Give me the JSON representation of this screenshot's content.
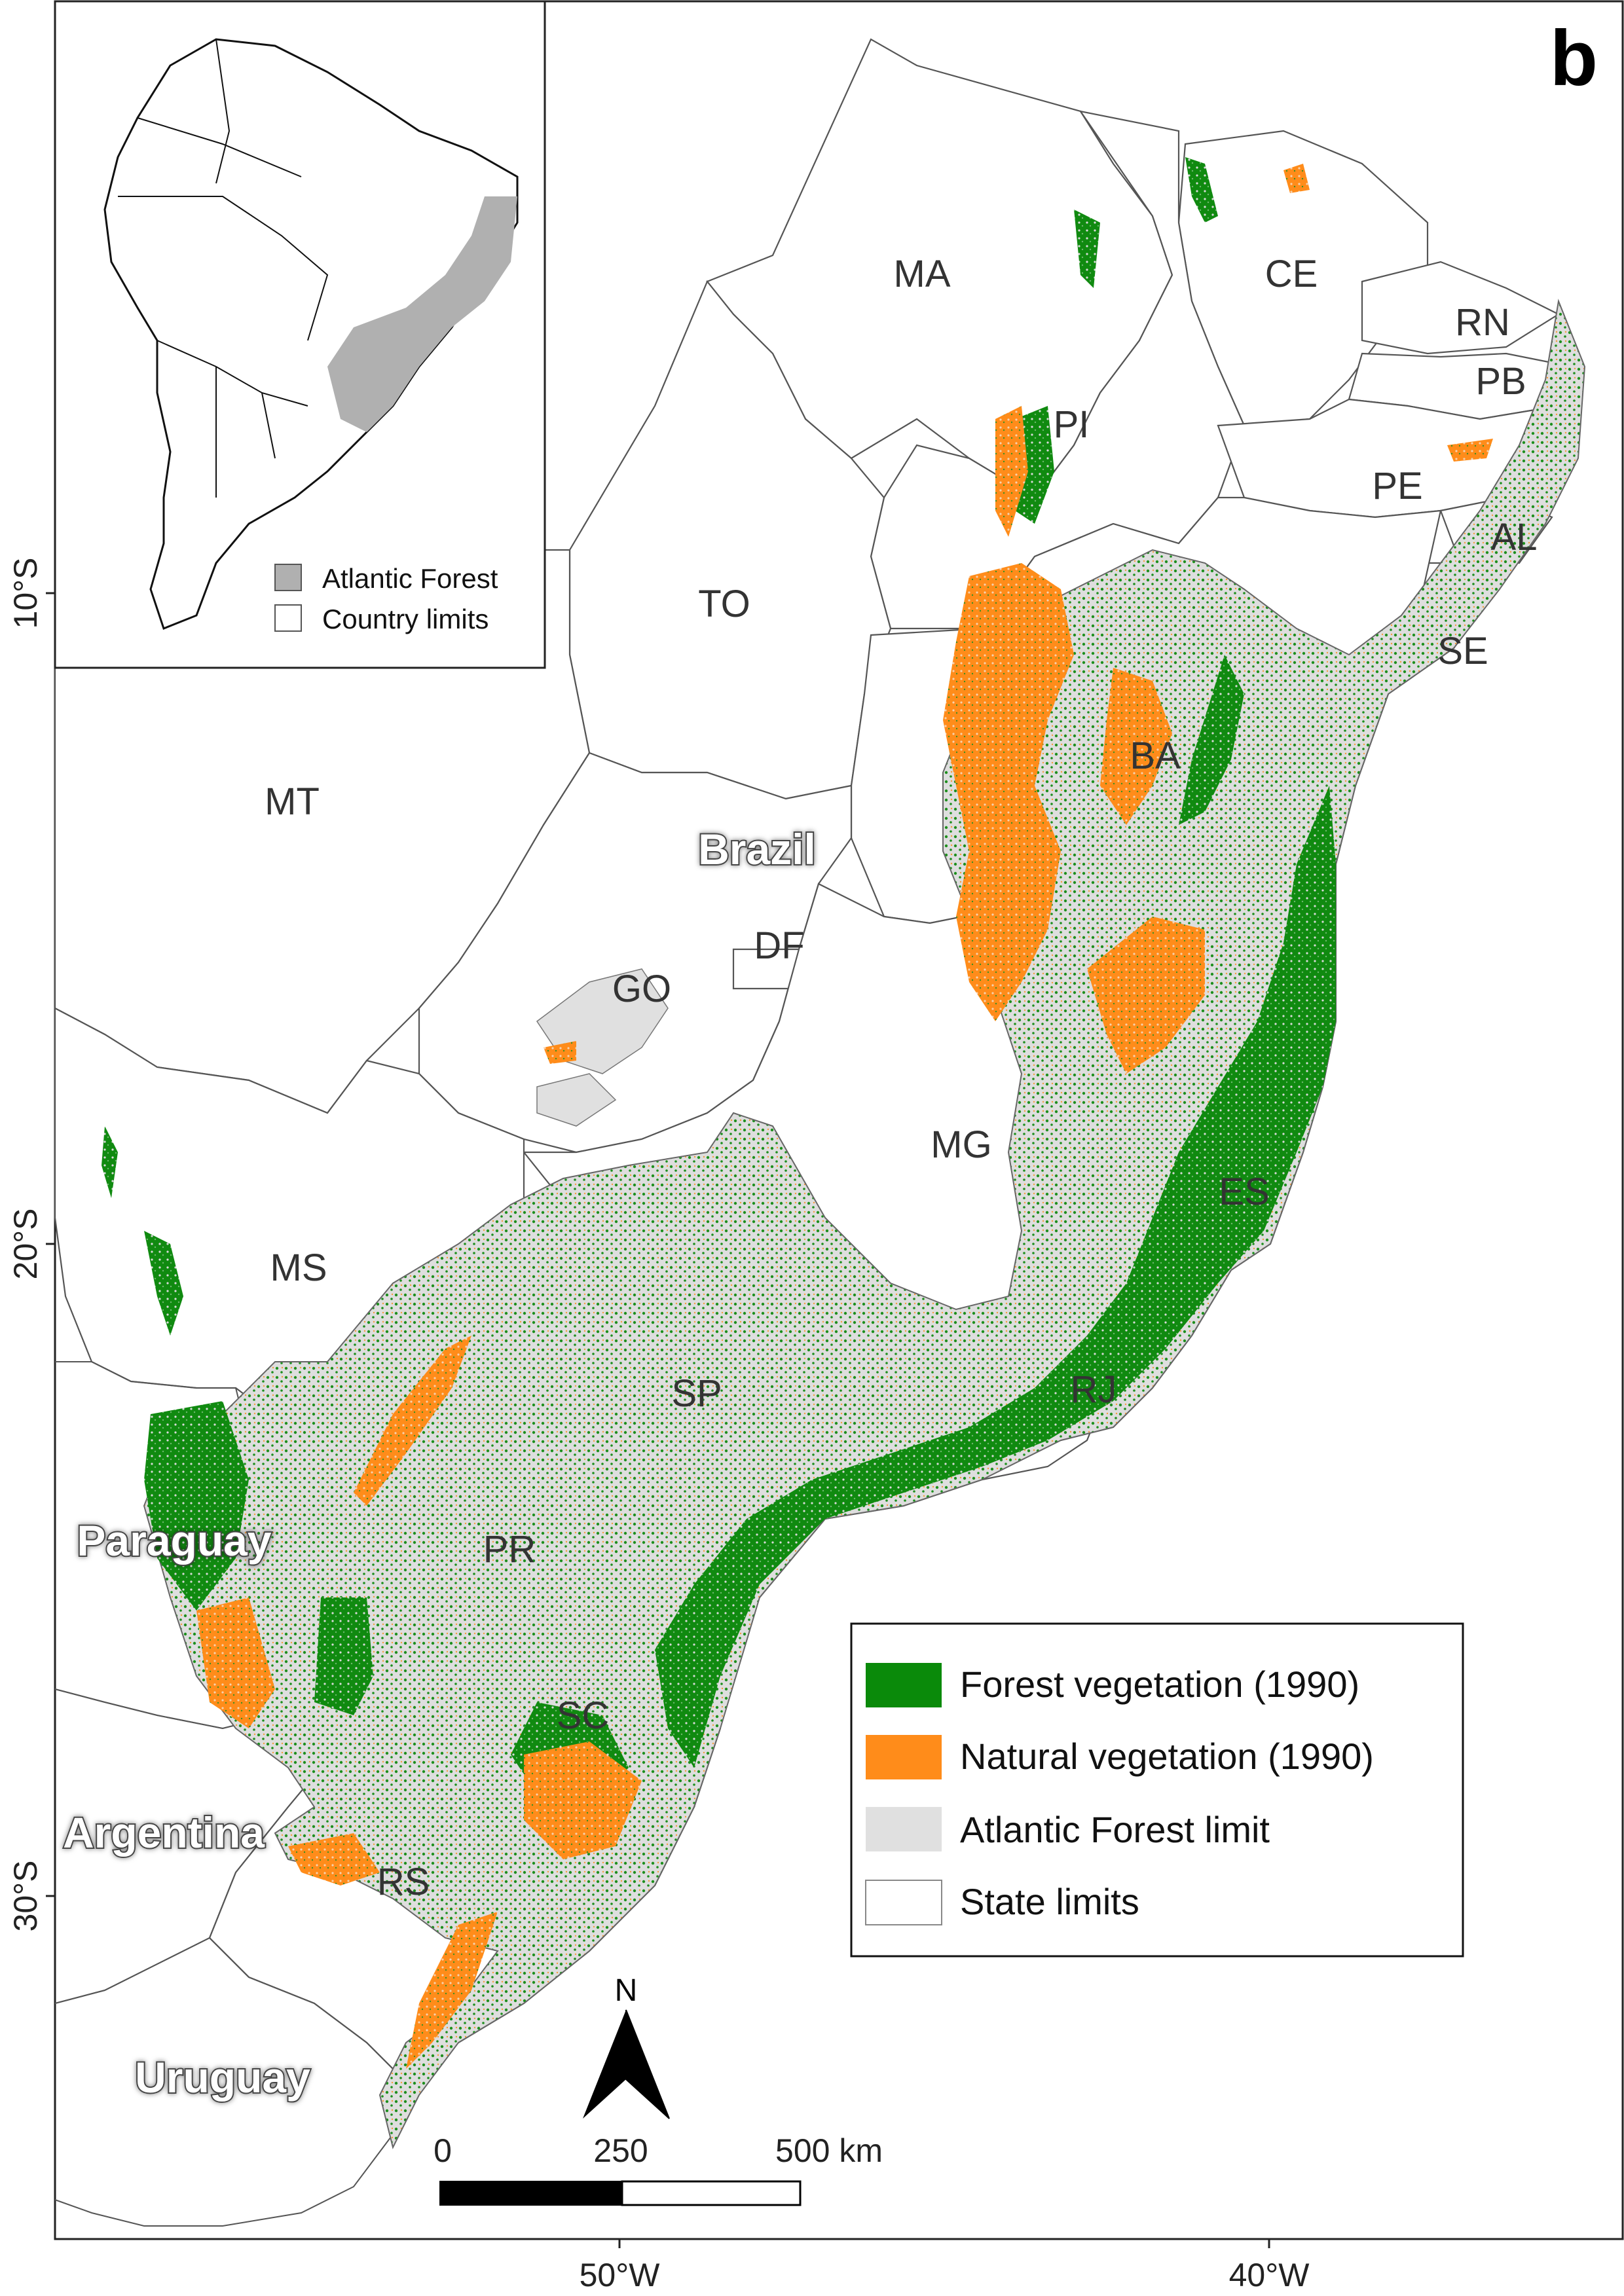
{
  "panel_letter": "b",
  "colors": {
    "forest": "#0a8a0a",
    "natural": "#ff8c1a",
    "atlantic_forest": "#e0e0e0",
    "state_fill": "#ffffff",
    "inset_atlantic": "#b0b0b0",
    "border": "#555555"
  },
  "states": [
    "MA",
    "CE",
    "RN",
    "PB",
    "PI",
    "PE",
    "AL",
    "TO",
    "SE",
    "BA",
    "MT",
    "GO",
    "DF",
    "MG",
    "ES",
    "MS",
    "SP",
    "RJ",
    "PR",
    "SC",
    "RS"
  ],
  "countries": [
    "Brazil",
    "Paraguay",
    "Argentina",
    "Uruguay"
  ],
  "coordinates": {
    "lat": [
      "10°S",
      "20°S",
      "30°S"
    ],
    "lon": [
      "50°W",
      "40°W"
    ]
  },
  "legend": {
    "items": [
      {
        "label": "Forest vegetation (1990)",
        "key": "forest"
      },
      {
        "label": "Natural vegetation (1990)",
        "key": "natural"
      },
      {
        "label": "Atlantic Forest limit",
        "key": "atlantic_forest"
      },
      {
        "label": "State limits",
        "key": "state_fill"
      }
    ]
  },
  "inset": {
    "legend": [
      {
        "label": "Atlantic Forest",
        "key": "inset_atlantic"
      },
      {
        "label": "Country limits",
        "key": "state_fill"
      }
    ]
  },
  "scale_bar": {
    "ticks": [
      "0",
      "250",
      "500 km"
    ]
  },
  "north_arrow": {
    "label": "N"
  }
}
